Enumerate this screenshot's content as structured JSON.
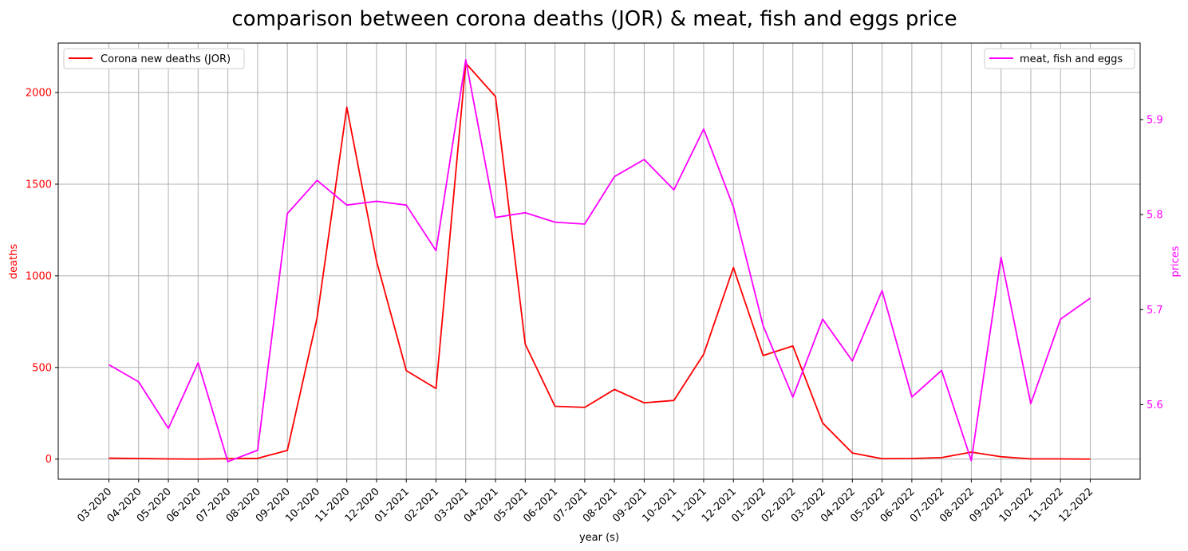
{
  "chart_data": {
    "type": "line",
    "title": "comparison between corona deaths (JOR) & meat, fish and eggs price",
    "xlabel": "year (s)",
    "ylabel_left": "deaths",
    "ylabel_right": "prices",
    "categories": [
      "03-2020",
      "04-2020",
      "05-2020",
      "06-2020",
      "07-2020",
      "08-2020",
      "09-2020",
      "10-2020",
      "11-2020",
      "12-2020",
      "01-2021",
      "02-2021",
      "03-2021",
      "04-2021",
      "05-2021",
      "06-2021",
      "07-2021",
      "08-2021",
      "09-2021",
      "10-2021",
      "11-2021",
      "12-2021",
      "01-2022",
      "02-2022",
      "03-2022",
      "04-2022",
      "05-2022",
      "06-2022",
      "07-2022",
      "08-2022",
      "09-2022",
      "10-2022",
      "11-2022",
      "12-2022"
    ],
    "left_axis": {
      "ylim": [
        -110,
        2270
      ],
      "ticks": [
        0,
        500,
        1000,
        1500,
        2000
      ],
      "color": "#ff0000"
    },
    "right_axis": {
      "ylim": [
        5.5215,
        5.9805
      ],
      "ticks": [
        5.6,
        5.7,
        5.8,
        5.9
      ],
      "tick_labels": [
        "5.6",
        "5.7",
        "5.8",
        "5.9"
      ],
      "color": "#ff00ff"
    },
    "grid": true,
    "series": [
      {
        "name": "Corona new deaths (JOR)",
        "axis": "left",
        "color": "#ff0000",
        "legend_position": "top-left",
        "values": [
          5,
          3,
          1,
          0,
          2,
          4,
          47,
          770,
          1920,
          1080,
          483,
          385,
          2160,
          1978,
          627,
          288,
          282,
          380,
          307,
          320,
          572,
          1045,
          565,
          617,
          197,
          33,
          2,
          3,
          8,
          38,
          13,
          1,
          1,
          0
        ]
      },
      {
        "name": "meat, fish and eggs",
        "axis": "right",
        "color": "#ff00ff",
        "legend_position": "top-right",
        "values": [
          5.642,
          5.624,
          5.575,
          5.644,
          5.54,
          5.552,
          5.801,
          5.836,
          5.81,
          5.814,
          5.81,
          5.762,
          5.963,
          5.797,
          5.802,
          5.792,
          5.79,
          5.84,
          5.858,
          5.826,
          5.89,
          5.808,
          5.683,
          5.608,
          5.69,
          5.646,
          5.72,
          5.608,
          5.636,
          5.541,
          5.755,
          5.601,
          5.69,
          5.712
        ]
      }
    ]
  }
}
